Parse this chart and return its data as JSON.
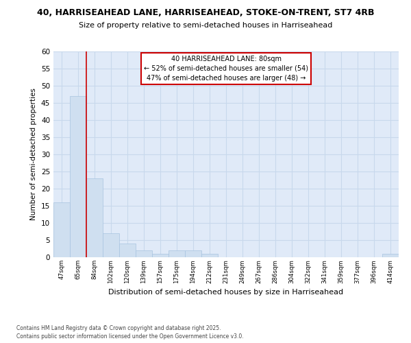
{
  "title_line1": "40, HARRISEAHEAD LANE, HARRISEAHEAD, STOKE-ON-TRENT, ST7 4RB",
  "title_line2": "Size of property relative to semi-detached houses in Harriseahead",
  "xlabel": "Distribution of semi-detached houses by size in Harriseahead",
  "ylabel": "Number of semi-detached properties",
  "categories": [
    "47sqm",
    "65sqm",
    "84sqm",
    "102sqm",
    "120sqm",
    "139sqm",
    "157sqm",
    "175sqm",
    "194sqm",
    "212sqm",
    "231sqm",
    "249sqm",
    "267sqm",
    "286sqm",
    "304sqm",
    "322sqm",
    "341sqm",
    "359sqm",
    "377sqm",
    "396sqm",
    "414sqm"
  ],
  "values": [
    16,
    47,
    23,
    7,
    4,
    2,
    1,
    2,
    2,
    1,
    0,
    0,
    0,
    0,
    0,
    0,
    0,
    0,
    0,
    0,
    1
  ],
  "bar_color": "#cfdff0",
  "bar_edge_color": "#a8c4e0",
  "red_line_index": 2,
  "annotation_text": "40 HARRISEAHEAD LANE: 80sqm\n← 52% of semi-detached houses are smaller (54)\n47% of semi-detached houses are larger (48) →",
  "annotation_box_color": "#ffffff",
  "annotation_box_edge_color": "#cc0000",
  "grid_color": "#c8d8ec",
  "background_color": "#ffffff",
  "plot_bg_color": "#e0eaf8",
  "footer_text": "Contains HM Land Registry data © Crown copyright and database right 2025.\nContains public sector information licensed under the Open Government Licence v3.0.",
  "ylim": [
    0,
    60
  ],
  "yticks": [
    0,
    5,
    10,
    15,
    20,
    25,
    30,
    35,
    40,
    45,
    50,
    55,
    60
  ]
}
